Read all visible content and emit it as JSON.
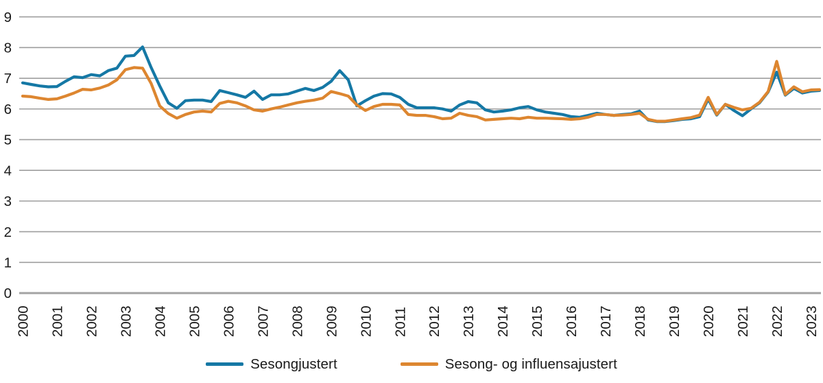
{
  "chart_data": {
    "type": "line",
    "title": "",
    "x_unit": "quarter",
    "x_range": "2000Q1-2023Q2",
    "years": [
      "2000",
      "2001",
      "2002",
      "2003",
      "2004",
      "2005",
      "2006",
      "2007",
      "2008",
      "2009",
      "2010",
      "2011",
      "2012",
      "2013",
      "2014",
      "2015",
      "2016",
      "2017",
      "2018",
      "2019",
      "2020",
      "2021",
      "2022",
      "2023"
    ],
    "y_ticks": [
      0,
      1,
      2,
      3,
      4,
      5,
      6,
      7,
      8,
      9
    ],
    "ylim": [
      0,
      9
    ],
    "grid": "horizontal",
    "legend_position": "bottom",
    "axis_color": "#9e9e9e",
    "text_color": "#1a1a1a",
    "series": [
      {
        "name": "Sesongjustert",
        "color": "#1578A5",
        "values": [
          6.85,
          6.8,
          6.75,
          6.72,
          6.73,
          6.9,
          7.05,
          7.02,
          7.12,
          7.08,
          7.25,
          7.33,
          7.72,
          7.74,
          8.02,
          7.35,
          6.75,
          6.2,
          6.02,
          6.27,
          6.29,
          6.29,
          6.24,
          6.6,
          6.53,
          6.46,
          6.38,
          6.58,
          6.31,
          6.46,
          6.46,
          6.49,
          6.58,
          6.67,
          6.6,
          6.7,
          6.9,
          7.25,
          6.95,
          6.1,
          6.27,
          6.42,
          6.5,
          6.49,
          6.38,
          6.15,
          6.04,
          6.04,
          6.04,
          6.0,
          5.93,
          6.13,
          6.24,
          6.2,
          5.97,
          5.9,
          5.93,
          5.97,
          6.04,
          6.08,
          5.97,
          5.9,
          5.86,
          5.82,
          5.75,
          5.73,
          5.79,
          5.86,
          5.82,
          5.79,
          5.82,
          5.84,
          5.93,
          5.64,
          5.59,
          5.59,
          5.62,
          5.66,
          5.68,
          5.75,
          6.32,
          5.8,
          6.15,
          5.95,
          5.78,
          6.0,
          6.2,
          6.55,
          7.2,
          6.45,
          6.67,
          6.52,
          6.58,
          6.6
        ]
      },
      {
        "name": "Sesong- og influensajustert",
        "color": "#DD8630",
        "values": [
          6.42,
          6.4,
          6.35,
          6.31,
          6.33,
          6.42,
          6.52,
          6.64,
          6.62,
          6.68,
          6.78,
          6.95,
          7.28,
          7.35,
          7.33,
          6.83,
          6.1,
          5.85,
          5.7,
          5.82,
          5.9,
          5.93,
          5.9,
          6.18,
          6.25,
          6.2,
          6.1,
          5.97,
          5.93,
          6.0,
          6.06,
          6.13,
          6.2,
          6.25,
          6.29,
          6.35,
          6.57,
          6.5,
          6.42,
          6.13,
          5.95,
          6.08,
          6.15,
          6.15,
          6.13,
          5.82,
          5.79,
          5.79,
          5.75,
          5.68,
          5.7,
          5.86,
          5.79,
          5.75,
          5.64,
          5.66,
          5.68,
          5.7,
          5.68,
          5.73,
          5.7,
          5.7,
          5.69,
          5.68,
          5.66,
          5.68,
          5.73,
          5.82,
          5.82,
          5.79,
          5.8,
          5.82,
          5.86,
          5.66,
          5.6,
          5.6,
          5.64,
          5.68,
          5.72,
          5.8,
          6.38,
          5.82,
          6.15,
          6.05,
          5.97,
          6.02,
          6.22,
          6.57,
          7.55,
          6.47,
          6.72,
          6.56,
          6.62,
          6.63
        ]
      }
    ]
  }
}
